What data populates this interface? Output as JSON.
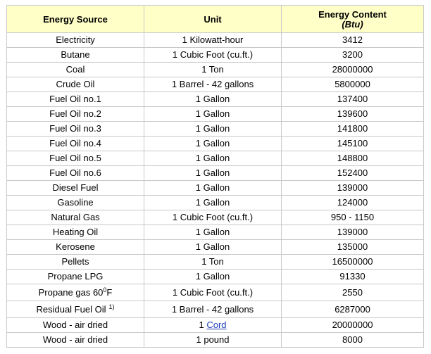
{
  "header": {
    "source": "Energy Source",
    "unit": "Unit",
    "content_line1": "Energy Content",
    "content_line2": "(Btu)"
  },
  "rows": [
    {
      "source": "Electricity",
      "unit": "1 Kilowatt-hour",
      "content": "3412"
    },
    {
      "source": "Butane",
      "unit": "1 Cubic Foot (cu.ft.)",
      "content": "3200"
    },
    {
      "source": "Coal",
      "unit": "1 Ton",
      "content": "28000000"
    },
    {
      "source": "Crude Oil",
      "unit": "1 Barrel - 42 gallons",
      "content": "5800000"
    },
    {
      "source": "Fuel Oil no.1",
      "unit": "1 Gallon",
      "content": "137400"
    },
    {
      "source": "Fuel Oil no.2",
      "unit": "1 Gallon",
      "content": "139600"
    },
    {
      "source": "Fuel Oil no.3",
      "unit": "1 Gallon",
      "content": "141800"
    },
    {
      "source": "Fuel Oil no.4",
      "unit": "1 Gallon",
      "content": "145100"
    },
    {
      "source": "Fuel Oil no.5",
      "unit": "1 Gallon",
      "content": "148800"
    },
    {
      "source": "Fuel Oil no.6",
      "unit": "1 Gallon",
      "content": "152400"
    },
    {
      "source": "Diesel Fuel",
      "unit": "1 Gallon",
      "content": "139000"
    },
    {
      "source": "Gasoline",
      "unit": "1 Gallon",
      "content": "124000"
    },
    {
      "source": "Natural Gas",
      "unit": "1 Cubic Foot (cu.ft.)",
      "content": "950 - 1150"
    },
    {
      "source": "Heating Oil",
      "unit": "1 Gallon",
      "content": "139000"
    },
    {
      "source": "Kerosene",
      "unit": "1 Gallon",
      "content": "135000"
    },
    {
      "source": "Pellets",
      "unit": "1 Ton",
      "content": "16500000"
    },
    {
      "source": "Propane LPG",
      "unit": "1 Gallon",
      "content": "91330"
    }
  ],
  "propane_gas": {
    "source_prefix": "Propane gas 60",
    "source_sup": "0",
    "source_suffix": "F",
    "unit": "1 Cubic Foot (cu.ft.)",
    "content": "2550"
  },
  "residual": {
    "source": "Residual Fuel Oil",
    "note": "1)",
    "unit": "1 Barrel - 42 gallons",
    "content": "6287000"
  },
  "wood_cord": {
    "source": "Wood - air dried",
    "unit_prefix": "1",
    "unit_link": "Cord",
    "content": "20000000"
  },
  "wood_pound": {
    "source": "Wood - air dried",
    "unit": "1 pound",
    "content": "8000"
  }
}
